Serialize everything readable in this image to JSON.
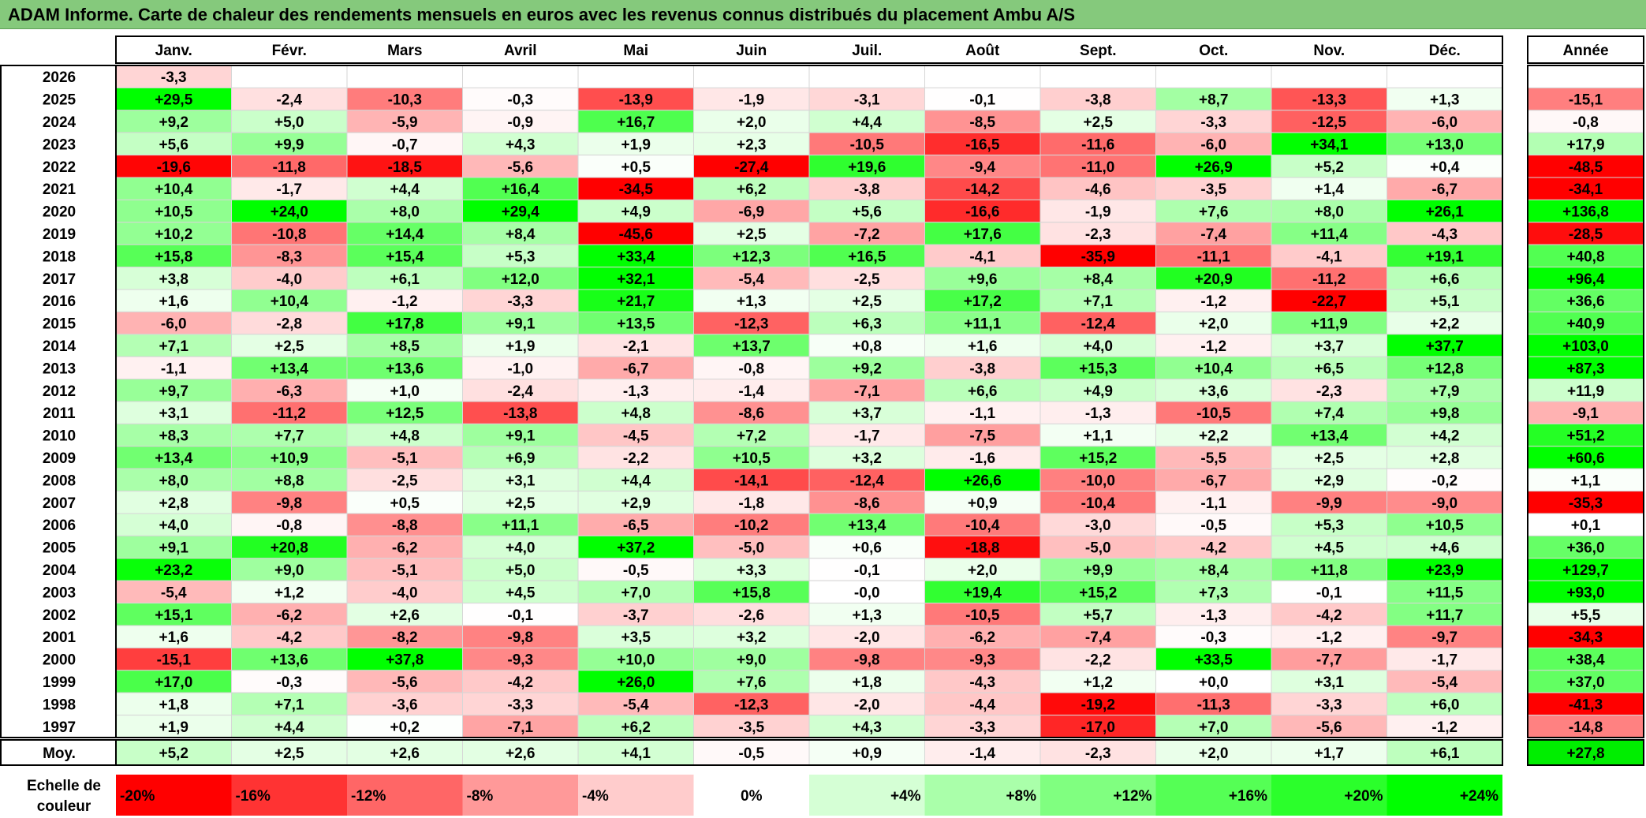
{
  "title": "ADAM Informe. Carte de chaleur des rendements mensuels en euros avec les revenus connus distribués du placement Ambu A/S",
  "chart_data": {
    "type": "heatmap",
    "title": "ADAM Informe. Carte de chaleur des rendements mensuels en euros avec les revenus connus distribués du placement Ambu A/S",
    "columns": [
      "Janv.",
      "Févr.",
      "Mars",
      "Avril",
      "Mai",
      "Juin",
      "Juil.",
      "Août",
      "Sept.",
      "Oct.",
      "Nov.",
      "Déc."
    ],
    "year_column_label": "Année",
    "rows": [
      {
        "year": "2026",
        "values": [
          "-3,3",
          "",
          "",
          "",
          "",
          "",
          "",
          "",
          "",
          "",
          "",
          ""
        ],
        "annual": ""
      },
      {
        "year": "2025",
        "values": [
          "+29,5",
          "-2,4",
          "-10,3",
          "-0,3",
          "-13,9",
          "-1,9",
          "-3,1",
          "-0,1",
          "-3,8",
          "+8,7",
          "-13,3",
          "+1,3"
        ],
        "annual": "-15,1"
      },
      {
        "year": "2024",
        "values": [
          "+9,2",
          "+5,0",
          "-5,9",
          "-0,9",
          "+16,7",
          "+2,0",
          "+4,4",
          "-8,5",
          "+2,5",
          "-3,3",
          "-12,5",
          "-6,0"
        ],
        "annual": "-0,8"
      },
      {
        "year": "2023",
        "values": [
          "+5,6",
          "+9,9",
          "-0,7",
          "+4,3",
          "+1,9",
          "+2,3",
          "-10,5",
          "-16,5",
          "-11,6",
          "-6,0",
          "+34,1",
          "+13,0"
        ],
        "annual": "+17,9"
      },
      {
        "year": "2022",
        "values": [
          "-19,6",
          "-11,8",
          "-18,5",
          "-5,6",
          "+0,5",
          "-27,4",
          "+19,6",
          "-9,4",
          "-11,0",
          "+26,9",
          "+5,2",
          "+0,4"
        ],
        "annual": "-48,5"
      },
      {
        "year": "2021",
        "values": [
          "+10,4",
          "-1,7",
          "+4,4",
          "+16,4",
          "-34,5",
          "+6,2",
          "-3,8",
          "-14,2",
          "-4,6",
          "-3,5",
          "+1,4",
          "-6,7"
        ],
        "annual": "-34,1"
      },
      {
        "year": "2020",
        "values": [
          "+10,5",
          "+24,0",
          "+8,0",
          "+29,4",
          "+4,9",
          "-6,9",
          "+5,6",
          "-16,6",
          "-1,9",
          "+7,6",
          "+8,0",
          "+26,1"
        ],
        "annual": "+136,8"
      },
      {
        "year": "2019",
        "values": [
          "+10,2",
          "-10,8",
          "+14,4",
          "+8,4",
          "-45,6",
          "+2,5",
          "-7,2",
          "+17,6",
          "-2,3",
          "-7,4",
          "+11,4",
          "-4,3"
        ],
        "annual": "-28,5"
      },
      {
        "year": "2018",
        "values": [
          "+15,8",
          "-8,3",
          "+15,4",
          "+5,3",
          "+33,4",
          "+12,3",
          "+16,5",
          "-4,1",
          "-35,9",
          "-11,1",
          "-4,1",
          "+19,1"
        ],
        "annual": "+40,8"
      },
      {
        "year": "2017",
        "values": [
          "+3,8",
          "-4,0",
          "+6,1",
          "+12,0",
          "+32,1",
          "-5,4",
          "-2,5",
          "+9,6",
          "+8,4",
          "+20,9",
          "-11,2",
          "+6,6"
        ],
        "annual": "+96,4"
      },
      {
        "year": "2016",
        "values": [
          "+1,6",
          "+10,4",
          "-1,2",
          "-3,3",
          "+21,7",
          "+1,3",
          "+2,5",
          "+17,2",
          "+7,1",
          "-1,2",
          "-22,7",
          "+5,1"
        ],
        "annual": "+36,6"
      },
      {
        "year": "2015",
        "values": [
          "-6,0",
          "-2,8",
          "+17,8",
          "+9,1",
          "+13,5",
          "-12,3",
          "+6,3",
          "+11,1",
          "-12,4",
          "+2,0",
          "+11,9",
          "+2,2"
        ],
        "annual": "+40,9"
      },
      {
        "year": "2014",
        "values": [
          "+7,1",
          "+2,5",
          "+8,5",
          "+1,9",
          "-2,1",
          "+13,7",
          "+0,8",
          "+1,6",
          "+4,0",
          "-1,2",
          "+3,7",
          "+37,7"
        ],
        "annual": "+103,0"
      },
      {
        "year": "2013",
        "values": [
          "-1,1",
          "+13,4",
          "+13,6",
          "-1,0",
          "-6,7",
          "-0,8",
          "+9,2",
          "-3,8",
          "+15,3",
          "+10,4",
          "+6,5",
          "+12,8"
        ],
        "annual": "+87,3"
      },
      {
        "year": "2012",
        "values": [
          "+9,7",
          "-6,3",
          "+1,0",
          "-2,4",
          "-1,3",
          "-1,4",
          "-7,1",
          "+6,6",
          "+4,9",
          "+3,6",
          "-2,3",
          "+7,9"
        ],
        "annual": "+11,9"
      },
      {
        "year": "2011",
        "values": [
          "+3,1",
          "-11,2",
          "+12,5",
          "-13,8",
          "+4,8",
          "-8,6",
          "+3,7",
          "-1,1",
          "-1,3",
          "-10,5",
          "+7,4",
          "+9,8"
        ],
        "annual": "-9,1"
      },
      {
        "year": "2010",
        "values": [
          "+8,3",
          "+7,7",
          "+4,8",
          "+9,1",
          "-4,5",
          "+7,2",
          "-1,7",
          "-7,5",
          "+1,1",
          "+2,2",
          "+13,4",
          "+4,2"
        ],
        "annual": "+51,2"
      },
      {
        "year": "2009",
        "values": [
          "+13,4",
          "+10,9",
          "-5,1",
          "+6,9",
          "-2,2",
          "+10,5",
          "+3,2",
          "-1,6",
          "+15,2",
          "-5,5",
          "+2,5",
          "+2,8"
        ],
        "annual": "+60,6"
      },
      {
        "year": "2008",
        "values": [
          "+8,0",
          "+8,8",
          "-2,5",
          "+3,1",
          "+4,4",
          "-14,1",
          "-12,4",
          "+26,6",
          "-10,0",
          "-6,7",
          "+2,9",
          "-0,2"
        ],
        "annual": "+1,1"
      },
      {
        "year": "2007",
        "values": [
          "+2,8",
          "-9,8",
          "+0,5",
          "+2,5",
          "+2,9",
          "-1,8",
          "-8,6",
          "+0,9",
          "-10,4",
          "-1,1",
          "-9,9",
          "-9,0"
        ],
        "annual": "-35,3"
      },
      {
        "year": "2006",
        "values": [
          "+4,0",
          "-0,8",
          "-8,8",
          "+11,1",
          "-6,5",
          "-10,2",
          "+13,4",
          "-10,4",
          "-3,0",
          "-0,5",
          "+5,3",
          "+10,5"
        ],
        "annual": "+0,1"
      },
      {
        "year": "2005",
        "values": [
          "+9,1",
          "+20,8",
          "-6,2",
          "+4,0",
          "+37,2",
          "-5,0",
          "+0,6",
          "-18,8",
          "-5,0",
          "-4,2",
          "+4,5",
          "+4,6"
        ],
        "annual": "+36,0"
      },
      {
        "year": "2004",
        "values": [
          "+23,2",
          "+9,0",
          "-5,1",
          "+5,0",
          "-0,5",
          "+3,3",
          "-0,1",
          "+2,0",
          "+9,9",
          "+8,4",
          "+11,8",
          "+23,9"
        ],
        "annual": "+129,7"
      },
      {
        "year": "2003",
        "values": [
          "-5,4",
          "+1,2",
          "-4,0",
          "+4,5",
          "+7,0",
          "+15,8",
          "-0,0",
          "+19,4",
          "+15,2",
          "+7,3",
          "-0,1",
          "+11,5"
        ],
        "annual": "+93,0"
      },
      {
        "year": "2002",
        "values": [
          "+15,1",
          "-6,2",
          "+2,6",
          "-0,1",
          "-3,7",
          "-2,6",
          "+1,3",
          "-10,5",
          "+5,7",
          "-1,3",
          "-4,2",
          "+11,7"
        ],
        "annual": "+5,5"
      },
      {
        "year": "2001",
        "values": [
          "+1,6",
          "-4,2",
          "-8,2",
          "-9,8",
          "+3,5",
          "+3,2",
          "-2,0",
          "-6,2",
          "-7,4",
          "-0,3",
          "-1,2",
          "-9,7"
        ],
        "annual": "-34,3"
      },
      {
        "year": "2000",
        "values": [
          "-15,1",
          "+13,6",
          "+37,8",
          "-9,3",
          "+10,0",
          "+9,0",
          "-9,8",
          "-9,3",
          "-2,2",
          "+33,5",
          "-7,7",
          "-1,7"
        ],
        "annual": "+38,4"
      },
      {
        "year": "1999",
        "values": [
          "+17,0",
          "-0,3",
          "-5,6",
          "-4,2",
          "+26,0",
          "+7,6",
          "+1,8",
          "-4,3",
          "+1,2",
          "+0,0",
          "+3,1",
          "-5,4"
        ],
        "annual": "+37,0"
      },
      {
        "year": "1998",
        "values": [
          "+1,8",
          "+7,1",
          "-3,6",
          "-3,3",
          "-5,4",
          "-12,3",
          "-2,0",
          "-4,4",
          "-19,2",
          "-11,3",
          "-3,3",
          "+6,0"
        ],
        "annual": "-41,3"
      },
      {
        "year": "1997",
        "values": [
          "+1,9",
          "+4,4",
          "+0,2",
          "-7,1",
          "+6,2",
          "-3,5",
          "+4,3",
          "-3,3",
          "-17,0",
          "+7,0",
          "-5,6",
          "-1,2"
        ],
        "annual": "-14,8"
      }
    ],
    "average": {
      "label": "Moy.",
      "values": [
        "+5,2",
        "+2,5",
        "+2,6",
        "+2,6",
        "+4,1",
        "-0,5",
        "+0,9",
        "-1,4",
        "-2,3",
        "+2,0",
        "+1,7",
        "+6,1"
      ],
      "annual": "+27,8"
    },
    "scale": {
      "label_line1": "Echelle de",
      "label_line2": "couleur",
      "items": [
        "-20%",
        "-16%",
        "-12%",
        "-8%",
        "-4%",
        "0%",
        "+4%",
        "+8%",
        "+12%",
        "+16%",
        "+20%",
        "+24%"
      ]
    },
    "colors": {
      "negative_max": "#ff0000",
      "neutral": "#ffffff",
      "positive_max": "#00ff00",
      "title_bar": "#85c97c"
    }
  }
}
